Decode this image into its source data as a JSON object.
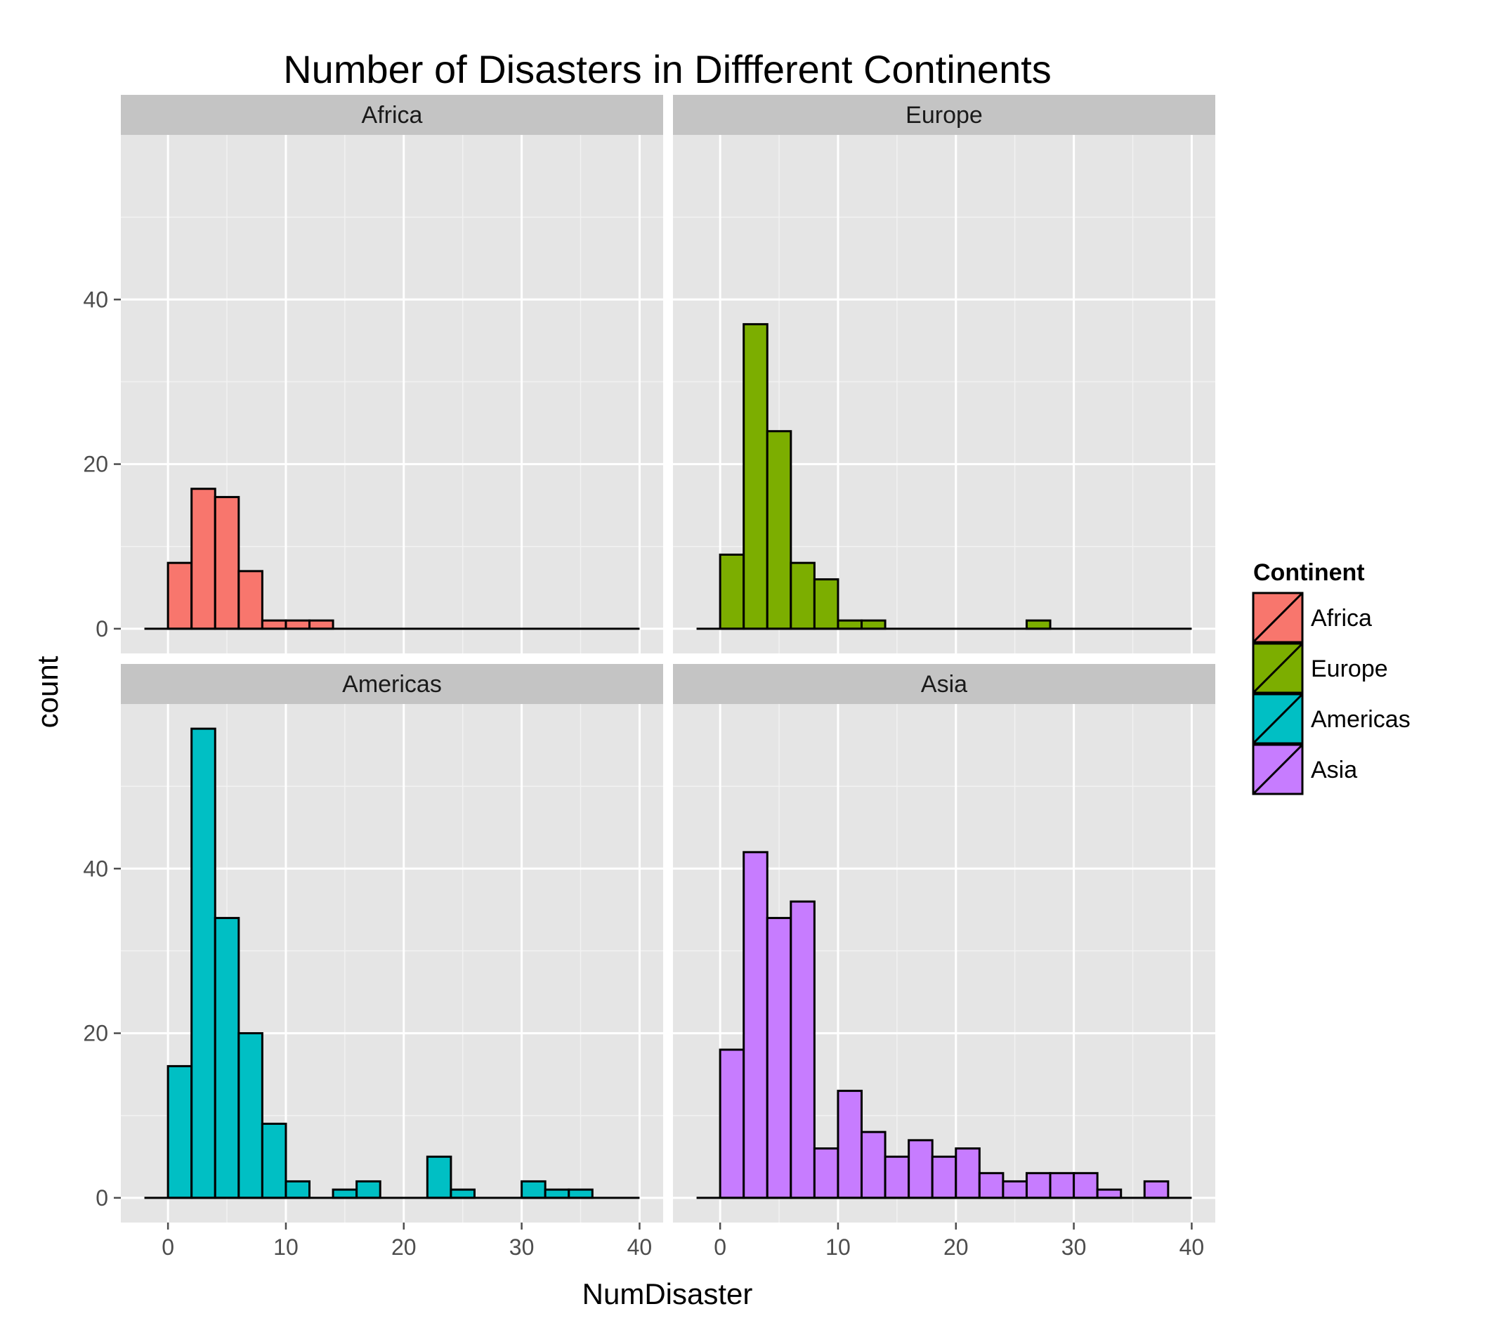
{
  "chart_data": {
    "type": "histogram",
    "title": "Number of Disasters in Diffferent Continents",
    "xlabel": "NumDisaster",
    "ylabel": "count",
    "xlim": [
      -4,
      42
    ],
    "ylim": [
      -3,
      60
    ],
    "x_ticks": [
      0,
      10,
      20,
      30,
      40
    ],
    "y_ticks": [
      0,
      20,
      40
    ],
    "bin_width": 2,
    "bin_start": -2,
    "grid": true,
    "legend": {
      "title": "Continent",
      "position": "right",
      "entries": [
        "Africa",
        "Europe",
        "Americas",
        "Asia"
      ]
    },
    "panels": [
      {
        "name": "Africa",
        "color": "#F8766D",
        "position": "top-left",
        "counts": [
          0,
          8,
          17,
          16,
          7,
          1,
          1,
          1,
          0,
          0,
          0,
          0,
          0,
          0,
          0,
          0,
          0,
          0,
          0,
          0,
          0
        ]
      },
      {
        "name": "Europe",
        "color": "#7CAE00",
        "position": "top-right",
        "counts": [
          0,
          9,
          37,
          24,
          8,
          6,
          1,
          1,
          0,
          0,
          0,
          0,
          0,
          0,
          1,
          0,
          0,
          0,
          0,
          0,
          0
        ]
      },
      {
        "name": "Americas",
        "color": "#00BFC4",
        "position": "bottom-left",
        "counts": [
          0,
          16,
          57,
          34,
          20,
          9,
          2,
          0,
          1,
          2,
          0,
          0,
          5,
          1,
          0,
          0,
          2,
          1,
          1,
          0,
          0
        ]
      },
      {
        "name": "Asia",
        "color": "#C77CFF",
        "position": "bottom-right",
        "counts": [
          0,
          18,
          42,
          34,
          36,
          6,
          13,
          8,
          5,
          7,
          5,
          6,
          3,
          2,
          3,
          3,
          3,
          1,
          0,
          2,
          0
        ]
      }
    ]
  }
}
